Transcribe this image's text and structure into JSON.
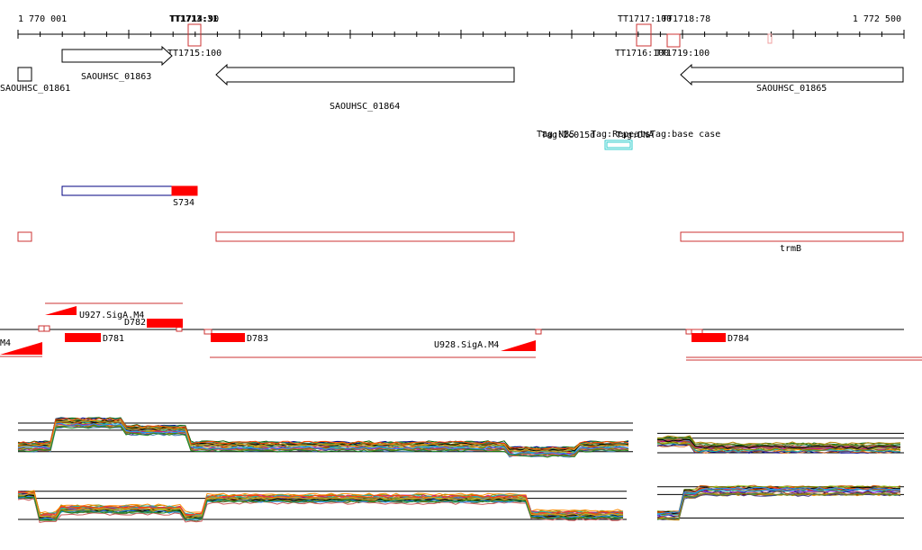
{
  "axis": {
    "start_label": "1 770 001",
    "end_label": "1 772 500"
  },
  "terminators": [
    "TT1713:31",
    "TT1714:90",
    "TT1715:100",
    "TT1716:100",
    "TT1717:100",
    "TT1718:78",
    "TT1719:100"
  ],
  "genes": [
    "SAOUHSC_01861",
    "SAOUHSC_01863",
    "SAOUHSC_01864",
    "SAOUHSC_01865"
  ],
  "features_track": {
    "labels": [
      "Tag:NBS",
      "Tag:2c015d",
      "Tag:Repeats",
      "Tag:DNA",
      "Tag:base case"
    ]
  },
  "rnas": {
    "s_label": "S734",
    "operon_label": "trmB"
  },
  "promoters": {
    "sig_labels": [
      "U927.SigA.M4",
      "U928.SigA.M4",
      "M4"
    ],
    "d_labels": [
      "D781",
      "D782",
      "D783",
      "D784"
    ]
  },
  "colors": {
    "red": "#ff0000",
    "dark_red": "#cc3333",
    "blue": "#000080",
    "cyan": "#33cccc",
    "grid": "#000000"
  }
}
